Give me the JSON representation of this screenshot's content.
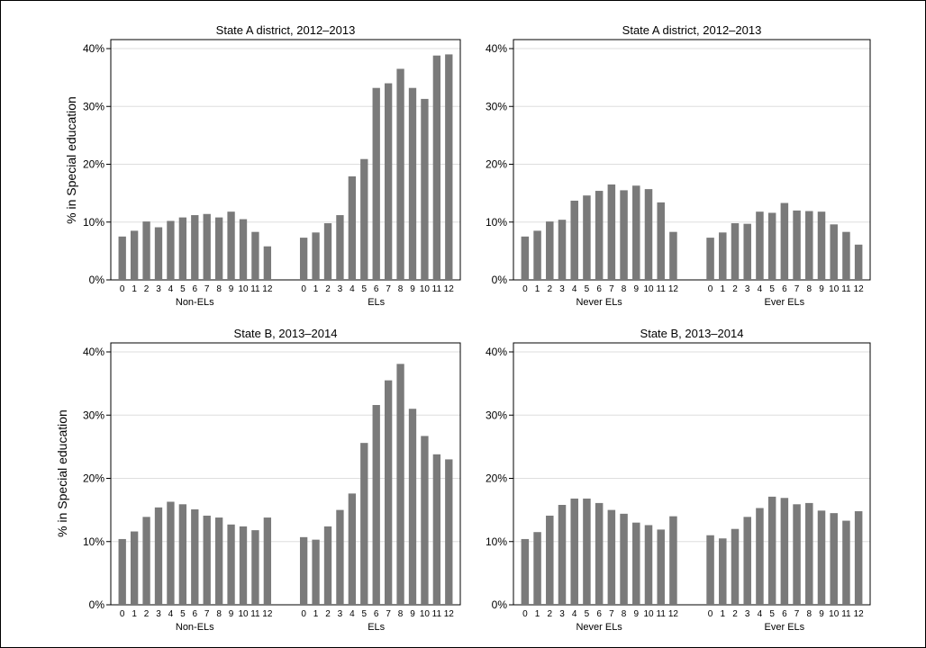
{
  "colors": {
    "bar": "#7a7a7a",
    "grid": "#dedede",
    "frame": "#000000",
    "background": "#ffffff"
  },
  "ylabel": "% in Special education",
  "chart_data": [
    {
      "type": "bar",
      "title": "State A district, 2012–2013",
      "ylabel": "% in Special education",
      "ylim": [
        0,
        40
      ],
      "yticks": [
        "0%",
        "10%",
        "20%",
        "30%",
        "40%"
      ],
      "grid": true,
      "categories": [
        "0",
        "1",
        "2",
        "3",
        "4",
        "5",
        "6",
        "7",
        "8",
        "9",
        "10",
        "11",
        "12"
      ],
      "series": [
        {
          "name": "Non-ELs",
          "values": [
            7.5,
            8.5,
            10.1,
            9.1,
            10.2,
            10.8,
            11.2,
            11.4,
            10.8,
            11.8,
            10.5,
            8.3,
            5.8
          ]
        },
        {
          "name": "ELs",
          "values": [
            7.3,
            8.2,
            9.8,
            11.2,
            17.9,
            20.9,
            33.2,
            34.0,
            36.5,
            33.2,
            31.3,
            38.8,
            39.0
          ]
        }
      ]
    },
    {
      "type": "bar",
      "title": "State A district, 2012–2013",
      "ylabel": "",
      "ylim": [
        0,
        40
      ],
      "yticks": [
        "0%",
        "10%",
        "20%",
        "30%",
        "40%"
      ],
      "grid": true,
      "categories": [
        "0",
        "1",
        "2",
        "3",
        "4",
        "5",
        "6",
        "7",
        "8",
        "9",
        "10",
        "11",
        "12"
      ],
      "series": [
        {
          "name": "Never ELs",
          "values": [
            7.5,
            8.5,
            10.1,
            10.4,
            13.7,
            14.6,
            15.4,
            16.5,
            15.5,
            16.3,
            15.7,
            13.4,
            8.3
          ]
        },
        {
          "name": "Ever ELs",
          "values": [
            7.3,
            8.2,
            9.8,
            9.7,
            11.8,
            11.6,
            13.3,
            12.0,
            11.9,
            11.8,
            9.6,
            8.3,
            6.1
          ]
        }
      ]
    },
    {
      "type": "bar",
      "title": "State B, 2013–2014",
      "ylabel": "% in Special education",
      "ylim": [
        0,
        40
      ],
      "yticks": [
        "0%",
        "10%",
        "20%",
        "30%",
        "40%"
      ],
      "grid": true,
      "categories": [
        "0",
        "1",
        "2",
        "3",
        "4",
        "5",
        "6",
        "7",
        "8",
        "9",
        "10",
        "11",
        "12"
      ],
      "series": [
        {
          "name": "Non-ELs",
          "values": [
            10.4,
            11.6,
            13.9,
            15.4,
            16.3,
            15.9,
            15.1,
            14.1,
            13.8,
            12.7,
            12.4,
            11.8,
            13.8
          ]
        },
        {
          "name": "ELs",
          "values": [
            10.7,
            10.3,
            12.4,
            15.0,
            17.6,
            25.6,
            31.6,
            35.5,
            38.1,
            31.0,
            26.7,
            23.8,
            23.0
          ]
        }
      ]
    },
    {
      "type": "bar",
      "title": "State B, 2013–2014",
      "ylabel": "",
      "ylim": [
        0,
        40
      ],
      "yticks": [
        "0%",
        "10%",
        "20%",
        "30%",
        "40%"
      ],
      "grid": true,
      "categories": [
        "0",
        "1",
        "2",
        "3",
        "4",
        "5",
        "6",
        "7",
        "8",
        "9",
        "10",
        "11",
        "12"
      ],
      "series": [
        {
          "name": "Never ELs",
          "values": [
            10.4,
            11.5,
            14.1,
            15.8,
            16.8,
            16.8,
            16.1,
            15.0,
            14.4,
            13.0,
            12.6,
            11.9,
            14.0
          ]
        },
        {
          "name": "Ever ELs",
          "values": [
            11.0,
            10.5,
            12.0,
            13.9,
            15.3,
            17.1,
            16.9,
            15.9,
            16.1,
            14.9,
            14.5,
            13.3,
            14.8
          ]
        }
      ]
    }
  ]
}
